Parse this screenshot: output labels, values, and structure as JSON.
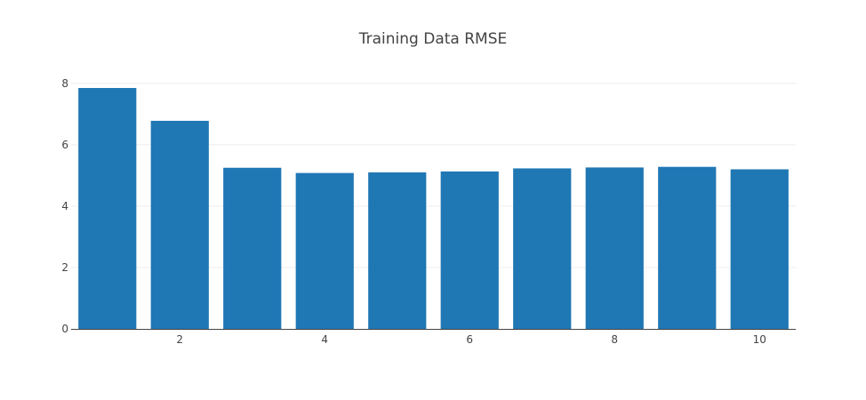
{
  "chart_data": {
    "type": "bar",
    "title": "Training Data RMSE",
    "x": [
      1,
      2,
      3,
      4,
      5,
      6,
      7,
      8,
      9,
      10
    ],
    "values": [
      7.85,
      6.78,
      5.25,
      5.08,
      5.1,
      5.13,
      5.23,
      5.26,
      5.28,
      5.2
    ],
    "xlabel": "",
    "ylabel": "",
    "xlim": [
      0.5,
      10.5
    ],
    "ylim": [
      0,
      8.4
    ],
    "x_ticks": [
      2,
      4,
      6,
      8,
      10
    ],
    "y_ticks": [
      0,
      2,
      4,
      6,
      8
    ],
    "x_tick_labels": [
      "2",
      "4",
      "6",
      "8",
      "10"
    ],
    "y_tick_labels": [
      "0",
      "2",
      "4",
      "6",
      "8"
    ],
    "grid": true,
    "bar_color": "#1f77b4"
  }
}
